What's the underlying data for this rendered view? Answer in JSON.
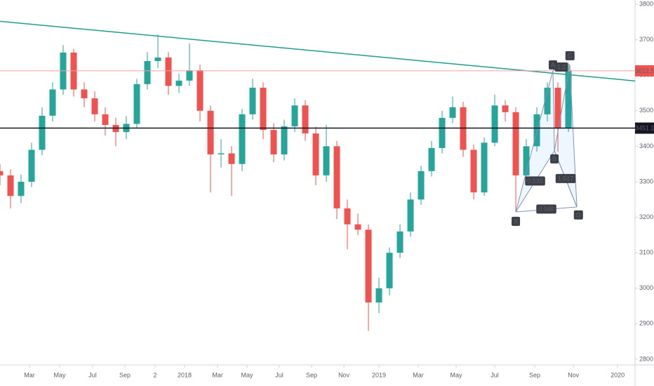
{
  "chart_data": {
    "type": "candlestick",
    "up_color": "#26a69a",
    "down_color": "#ef5350",
    "xlim": [
      0,
      60.33
    ],
    "ylim": [
      2784,
      3812
    ],
    "grid": false,
    "xticks": [
      {
        "value": 2.8,
        "label": "Mar"
      },
      {
        "value": 5.67,
        "label": "May"
      },
      {
        "value": 8.8,
        "label": "Jul"
      },
      {
        "value": 11.87,
        "label": "Sep"
      },
      {
        "value": 14.73,
        "label": "2"
      },
      {
        "value": 17.53,
        "label": "2018"
      },
      {
        "value": 20.67,
        "label": "Mar"
      },
      {
        "value": 23.47,
        "label": "May"
      },
      {
        "value": 26.53,
        "label": "Jul"
      },
      {
        "value": 29.6,
        "label": "Sep"
      },
      {
        "value": 32.67,
        "label": "Nov"
      },
      {
        "value": 36,
        "label": "2019"
      },
      {
        "value": 39.73,
        "label": "Mar"
      },
      {
        "value": 43.33,
        "label": "May"
      },
      {
        "value": 47,
        "label": "Jul"
      },
      {
        "value": 50.8,
        "label": "Sep"
      },
      {
        "value": 54.47,
        "label": "Nov"
      },
      {
        "value": 58.67,
        "label": "2020"
      }
    ],
    "yticks": [
      {
        "value": 2800,
        "label": "2800.0"
      },
      {
        "value": 2900,
        "label": "2900.0"
      },
      {
        "value": 3000,
        "label": "3000.0"
      },
      {
        "value": 3100,
        "label": "3100.0"
      },
      {
        "value": 3200,
        "label": "3200.0"
      },
      {
        "value": 3300,
        "label": "3300.0"
      },
      {
        "value": 3400,
        "label": "3400.0"
      },
      {
        "value": 3500,
        "label": "3500.0"
      },
      {
        "value": 3600,
        "label": "3600.0"
      },
      {
        "value": 3700,
        "label": "3700.0"
      },
      {
        "value": 3800,
        "label": "3800.0"
      }
    ],
    "open": [
      3330,
      3318,
      3260,
      3300,
      3390,
      3486,
      3560,
      3664,
      3560,
      3535,
      3490,
      3460,
      3440,
      3463,
      3575,
      3640,
      3650,
      3570,
      3585,
      3614,
      3500,
      3377,
      3380,
      3350,
      3490,
      3565,
      3446,
      3377,
      3456,
      3515,
      3436,
      3318,
      3400,
      3225,
      3180,
      3165,
      2960,
      3000,
      3100,
      3160,
      3250,
      3330,
      3395,
      3480,
      3510,
      3390,
      3270,
      3410,
      3515,
      3496,
      3318,
      3400,
      3490,
      3565,
      3450
    ],
    "high": [
      3350,
      3335,
      3320,
      3410,
      3510,
      3580,
      3685,
      3675,
      3580,
      3555,
      3510,
      3480,
      3485,
      3590,
      3665,
      3715,
      3665,
      3605,
      3690,
      3630,
      3515,
      3420,
      3400,
      3505,
      3590,
      3580,
      3465,
      3475,
      3535,
      3530,
      3455,
      3460,
      3415,
      3250,
      3210,
      3180,
      3030,
      3115,
      3180,
      3270,
      3345,
      3415,
      3500,
      3540,
      3525,
      3405,
      3425,
      3545,
      3530,
      3510,
      3420,
      3510,
      3580,
      3580,
      3635
    ],
    "low": [
      3290,
      3225,
      3240,
      3285,
      3375,
      3470,
      3545,
      3540,
      3510,
      3470,
      3430,
      3400,
      3420,
      3450,
      3560,
      3620,
      3545,
      3550,
      3570,
      3470,
      3270,
      3340,
      3260,
      3330,
      3475,
      3420,
      3355,
      3360,
      3440,
      3415,
      3290,
      3300,
      3195,
      3110,
      3150,
      2880,
      2930,
      2980,
      3085,
      3145,
      3235,
      3315,
      3380,
      3465,
      3370,
      3250,
      3260,
      3400,
      3470,
      3215,
      3300,
      3385,
      3470,
      3385,
      3440
    ],
    "close": [
      3318,
      3260,
      3300,
      3390,
      3486,
      3560,
      3664,
      3560,
      3535,
      3490,
      3460,
      3440,
      3463,
      3575,
      3640,
      3650,
      3570,
      3585,
      3614,
      3500,
      3377,
      3380,
      3350,
      3490,
      3565,
      3446,
      3377,
      3456,
      3515,
      3436,
      3318,
      3400,
      3225,
      3180,
      3165,
      2960,
      3000,
      3100,
      3160,
      3250,
      3330,
      3395,
      3480,
      3510,
      3390,
      3270,
      3410,
      3515,
      3496,
      3318,
      3400,
      3490,
      3565,
      3450,
      3614
    ],
    "trend_lines": [
      {
        "color": "#1e9e8a",
        "x": [
          0,
          60.33
        ],
        "y": [
          3752,
          3584
        ]
      }
    ],
    "price_lines": [
      {
        "value": 3612.5,
        "color": "#ef5350",
        "line_color": "#f4a29e"
      },
      {
        "value": 3451.1,
        "color": "#131722",
        "line_color": "#131722"
      }
    ],
    "pattern": {
      "fill": "#2196f3",
      "stroke": "#7f93b5",
      "points": [
        {
          "label": "X",
          "x": 49,
          "y": 3215
        },
        {
          "label": "A",
          "x": 52.53,
          "y": 3614
        },
        {
          "label": "B",
          "x": 52.67,
          "y": 3387
        },
        {
          "label": "C",
          "x": 54.13,
          "y": 3630
        },
        {
          "label": "D",
          "x": 54.8,
          "y": 3229
        }
      ],
      "ratios": [
        "0.535",
        "1.617",
        "0.946",
        "1.2"
      ]
    }
  }
}
